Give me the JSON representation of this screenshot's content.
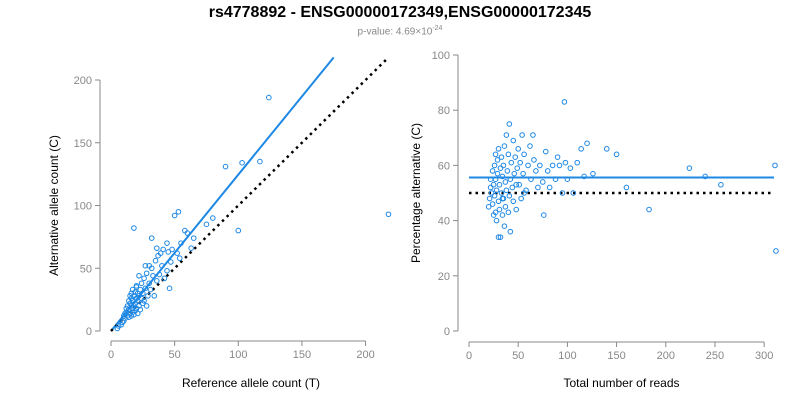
{
  "header": {
    "title": "rs4778892 - ENSG00000172349,ENSG00000172345",
    "pvalue_prefix": "p-value: 4.69×10",
    "pvalue_exponent": "-24"
  },
  "colors": {
    "points": "#1e88e5",
    "fit": "#1e88e5",
    "reference": "#000000",
    "axis": "#888888"
  },
  "chart_data": [
    {
      "type": "scatter",
      "xlabel": "Reference allele count (T)",
      "ylabel": "Alternative allele count (C)",
      "xlim": [
        0,
        220
      ],
      "ylim": [
        0,
        200
      ],
      "xticks": [
        0,
        50,
        100,
        150,
        200
      ],
      "yticks": [
        0,
        50,
        100,
        150,
        200
      ],
      "fit_line": {
        "x": [
          0,
          175
        ],
        "y": [
          0,
          218
        ],
        "style": "solid"
      },
      "reference_line": {
        "x": [
          0,
          218
        ],
        "y": [
          0,
          218
        ],
        "style": "dotted"
      },
      "points": [
        [
          5,
          2
        ],
        [
          6,
          4
        ],
        [
          8,
          5
        ],
        [
          9,
          7
        ],
        [
          10,
          8
        ],
        [
          10,
          12
        ],
        [
          11,
          14
        ],
        [
          11,
          10
        ],
        [
          12,
          18
        ],
        [
          12,
          15
        ],
        [
          13,
          20
        ],
        [
          13,
          12
        ],
        [
          14,
          24
        ],
        [
          14,
          17
        ],
        [
          14,
          11
        ],
        [
          15,
          28
        ],
        [
          15,
          22
        ],
        [
          15,
          14
        ],
        [
          16,
          30
        ],
        [
          16,
          20
        ],
        [
          16,
          26
        ],
        [
          16,
          12
        ],
        [
          17,
          18
        ],
        [
          17,
          24
        ],
        [
          17,
          33
        ],
        [
          17,
          15
        ],
        [
          18,
          28
        ],
        [
          18,
          20
        ],
        [
          18,
          13
        ],
        [
          19,
          31
        ],
        [
          19,
          22
        ],
        [
          19,
          16
        ],
        [
          20,
          26
        ],
        [
          20,
          35
        ],
        [
          20,
          18
        ],
        [
          21,
          24
        ],
        [
          21,
          30
        ],
        [
          21,
          14
        ],
        [
          22,
          44
        ],
        [
          22,
          20
        ],
        [
          22,
          28
        ],
        [
          23,
          33
        ],
        [
          23,
          17
        ],
        [
          24,
          26
        ],
        [
          24,
          38
        ],
        [
          25,
          22
        ],
        [
          25,
          30
        ],
        [
          26,
          24
        ],
        [
          26,
          42
        ],
        [
          27,
          34
        ],
        [
          28,
          20
        ],
        [
          28,
          46
        ],
        [
          29,
          28
        ],
        [
          30,
          38
        ],
        [
          30,
          52
        ],
        [
          31,
          33
        ],
        [
          32,
          50
        ],
        [
          33,
          44
        ],
        [
          34,
          28
        ],
        [
          35,
          56
        ],
        [
          36,
          40
        ],
        [
          37,
          60
        ],
        [
          38,
          45
        ],
        [
          39,
          62
        ],
        [
          40,
          52
        ],
        [
          41,
          65
        ],
        [
          42,
          42
        ],
        [
          44,
          48
        ],
        [
          45,
          63
        ],
        [
          46,
          34
        ],
        [
          47,
          55
        ],
        [
          48,
          65
        ],
        [
          50,
          92
        ],
        [
          52,
          62
        ],
        [
          53,
          95
        ],
        [
          54,
          58
        ],
        [
          55,
          70
        ],
        [
          58,
          80
        ],
        [
          60,
          78
        ],
        [
          63,
          66
        ],
        [
          65,
          74
        ],
        [
          75,
          85
        ],
        [
          80,
          90
        ],
        [
          90,
          131
        ],
        [
          100,
          80
        ],
        [
          103,
          134
        ],
        [
          117,
          135
        ],
        [
          124,
          186
        ],
        [
          218,
          93
        ],
        [
          18,
          82
        ],
        [
          32,
          74
        ],
        [
          20,
          36
        ],
        [
          27,
          52
        ],
        [
          36,
          66
        ],
        [
          44,
          70
        ]
      ]
    },
    {
      "type": "scatter",
      "xlabel": "Total number of reads",
      "ylabel": "Percentage alternative (C)",
      "xlim": [
        0,
        310
      ],
      "ylim": [
        0,
        100
      ],
      "xticks": [
        0,
        50,
        100,
        150,
        200,
        250,
        300
      ],
      "yticks": [
        0,
        20,
        40,
        60,
        80,
        100
      ],
      "mean_line": {
        "y": 55.6,
        "style": "solid"
      },
      "reference_line": {
        "y": 50,
        "style": "dotted"
      },
      "points": [
        [
          20,
          45
        ],
        [
          21,
          48
        ],
        [
          22,
          52
        ],
        [
          22,
          55
        ],
        [
          23,
          50
        ],
        [
          24,
          46
        ],
        [
          24,
          58
        ],
        [
          25,
          53
        ],
        [
          25,
          42
        ],
        [
          26,
          60
        ],
        [
          26,
          49
        ],
        [
          27,
          55
        ],
        [
          27,
          64
        ],
        [
          28,
          40
        ],
        [
          28,
          51
        ],
        [
          29,
          57
        ],
        [
          29,
          62
        ],
        [
          30,
          47
        ],
        [
          30,
          34
        ],
        [
          30,
          66
        ],
        [
          31,
          53
        ],
        [
          31,
          44
        ],
        [
          32,
          59
        ],
        [
          32,
          34
        ],
        [
          33,
          50
        ],
        [
          33,
          63
        ],
        [
          34,
          56
        ],
        [
          34,
          42
        ],
        [
          35,
          48
        ],
        [
          35,
          60
        ],
        [
          36,
          38
        ],
        [
          36,
          67
        ],
        [
          37,
          54
        ],
        [
          37,
          45
        ],
        [
          38,
          71
        ],
        [
          38,
          51
        ],
        [
          39,
          58
        ],
        [
          40,
          43
        ],
        [
          40,
          64
        ],
        [
          41,
          49
        ],
        [
          41,
          75
        ],
        [
          42,
          55
        ],
        [
          42,
          36
        ],
        [
          43,
          61
        ],
        [
          44,
          52
        ],
        [
          45,
          69
        ],
        [
          45,
          47
        ],
        [
          46,
          57
        ],
        [
          47,
          63
        ],
        [
          48,
          44
        ],
        [
          49,
          59
        ],
        [
          50,
          66
        ],
        [
          51,
          53
        ],
        [
          52,
          61
        ],
        [
          53,
          48
        ],
        [
          54,
          71
        ],
        [
          55,
          57
        ],
        [
          56,
          64
        ],
        [
          58,
          51
        ],
        [
          60,
          60
        ],
        [
          62,
          67
        ],
        [
          63,
          55
        ],
        [
          65,
          71
        ],
        [
          66,
          62
        ],
        [
          68,
          58
        ],
        [
          70,
          52
        ],
        [
          72,
          60
        ],
        [
          75,
          54
        ],
        [
          76,
          42
        ],
        [
          78,
          65
        ],
        [
          80,
          58
        ],
        [
          82,
          52
        ],
        [
          85,
          60
        ],
        [
          88,
          55
        ],
        [
          90,
          63
        ],
        [
          92,
          60
        ],
        [
          95,
          50
        ],
        [
          97,
          83
        ],
        [
          98,
          61
        ],
        [
          100,
          55
        ],
        [
          103,
          59
        ],
        [
          106,
          50
        ],
        [
          110,
          61
        ],
        [
          114,
          66
        ],
        [
          117,
          56
        ],
        [
          120,
          68
        ],
        [
          126,
          57
        ],
        [
          140,
          66
        ],
        [
          150,
          64
        ],
        [
          160,
          52
        ],
        [
          183,
          44
        ],
        [
          224,
          59
        ],
        [
          240,
          56
        ],
        [
          256,
          53
        ],
        [
          311,
          60
        ],
        [
          312,
          29
        ],
        [
          48,
          53
        ],
        [
          56,
          50
        ],
        [
          34,
          48
        ],
        [
          27,
          43
        ]
      ]
    }
  ]
}
